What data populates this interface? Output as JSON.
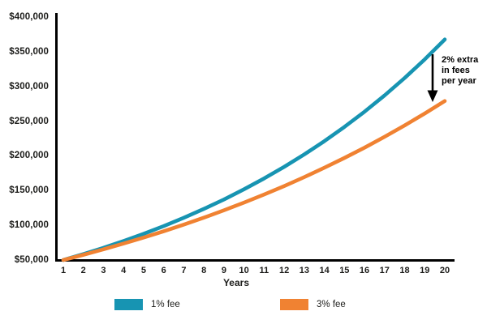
{
  "chart_data": {
    "type": "line",
    "title": "",
    "xlabel": "Years",
    "ylabel": "",
    "xlim": [
      1,
      20
    ],
    "ylim": [
      50000,
      400000
    ],
    "grid": false,
    "legend_position": "bottom",
    "x": [
      1,
      2,
      3,
      4,
      5,
      6,
      7,
      8,
      9,
      10,
      11,
      12,
      13,
      14,
      15,
      16,
      17,
      18,
      19,
      20
    ],
    "y_ticks": [
      {
        "value": 50000,
        "label": "$50,000"
      },
      {
        "value": 100000,
        "label": "$100,000"
      },
      {
        "value": 150000,
        "label": "$150,000"
      },
      {
        "value": 200000,
        "label": "$200,000"
      },
      {
        "value": 250000,
        "label": "$250,000"
      },
      {
        "value": 300000,
        "label": "$300,000"
      },
      {
        "value": 350000,
        "label": "$350,000"
      },
      {
        "value": 400000,
        "label": "$400,000"
      }
    ],
    "series": [
      {
        "name": "1% fee",
        "color": "#1794b2",
        "values": [
          50000,
          58500,
          67595,
          77327,
          87740,
          98881,
          110803,
          123559,
          137208,
          151813,
          167440,
          184161,
          202052,
          221196,
          241679,
          263597,
          287049,
          312142,
          338992,
          367721
        ]
      },
      {
        "name": "3% fee",
        "color": "#f08232",
        "values": [
          50000,
          57500,
          65375,
          73644,
          82326,
          91442,
          101014,
          111065,
          121618,
          132699,
          144334,
          156551,
          169378,
          182847,
          196990,
          211839,
          227431,
          243803,
          260993,
          279042
        ]
      }
    ],
    "annotation": {
      "text": "2% extra\nin fees\nper year",
      "arrow": "down"
    }
  }
}
